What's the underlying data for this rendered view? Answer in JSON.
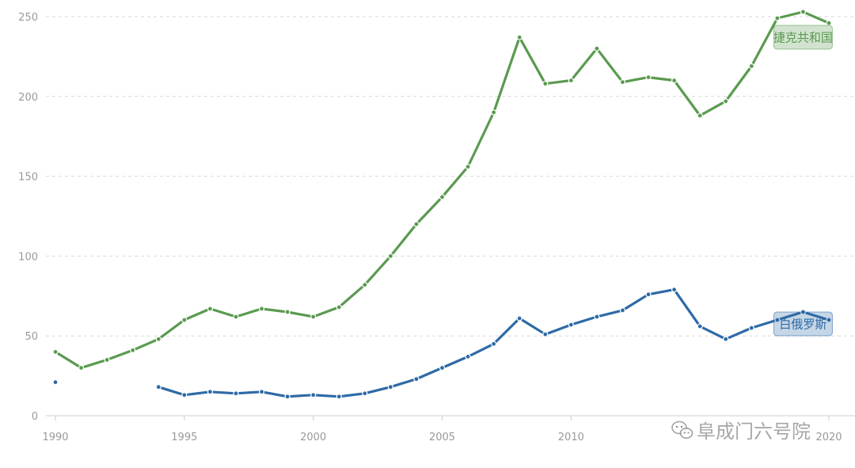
{
  "chart_data": {
    "type": "line",
    "x": [
      1990,
      1991,
      1992,
      1993,
      1994,
      1995,
      1996,
      1997,
      1998,
      1999,
      2000,
      2001,
      2002,
      2003,
      2004,
      2005,
      2006,
      2007,
      2008,
      2009,
      2010,
      2011,
      2012,
      2013,
      2014,
      2015,
      2016,
      2017,
      2018,
      2019,
      2020
    ],
    "xlim": [
      1990,
      2020
    ],
    "ylim": [
      0,
      250
    ],
    "xticks": [
      1990,
      1995,
      2000,
      2005,
      2010,
      2020
    ],
    "yticks": [
      0,
      50,
      100,
      150,
      200,
      250
    ],
    "grid": true,
    "series": [
      {
        "name": "捷克共和国",
        "color": "#5a9a50",
        "values": [
          40,
          30,
          35,
          41,
          48,
          60,
          67,
          62,
          67,
          65,
          62,
          68,
          82,
          100,
          120,
          137,
          156,
          190,
          237,
          208,
          210,
          230,
          209,
          212,
          210,
          188,
          197,
          219,
          249,
          253,
          246
        ]
      },
      {
        "name": "白俄罗斯",
        "color": "#2e6aa6",
        "values": [
          21,
          null,
          null,
          null,
          18,
          13,
          15,
          14,
          15,
          12,
          13,
          12,
          14,
          18,
          23,
          30,
          37,
          45,
          61,
          51,
          57,
          62,
          66,
          76,
          79,
          56,
          48,
          55,
          60,
          65,
          60
        ]
      }
    ],
    "title": "",
    "xlabel": "",
    "ylabel": ""
  },
  "watermark": {
    "text": "阜成门六号院",
    "icon": "wechat-icon"
  }
}
